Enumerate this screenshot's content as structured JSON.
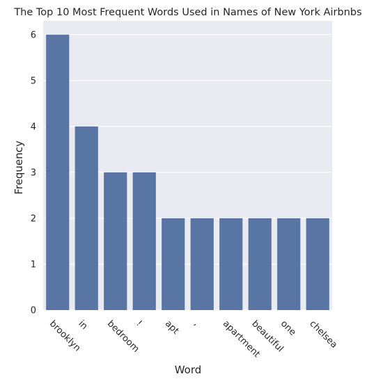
{
  "chart_data": {
    "type": "bar",
    "title": "The Top 10 Most Frequent Words Used in Names of New York Airbnbs",
    "xlabel": "Word",
    "ylabel": "Frequency",
    "categories": [
      "brooklyn",
      "in",
      "bedroom",
      "!",
      "apt",
      ",",
      "apartment",
      "beautiful",
      "one",
      "chelsea"
    ],
    "values": [
      6,
      4,
      3,
      3,
      2,
      2,
      2,
      2,
      2,
      2
    ],
    "yticks": [
      0,
      1,
      2,
      3,
      4,
      5,
      6
    ],
    "ylim": [
      0,
      6.3
    ],
    "grid": true,
    "colors": {
      "bar": "#5975a4",
      "background": "#eaeaf2",
      "grid": "#ffffff"
    }
  }
}
